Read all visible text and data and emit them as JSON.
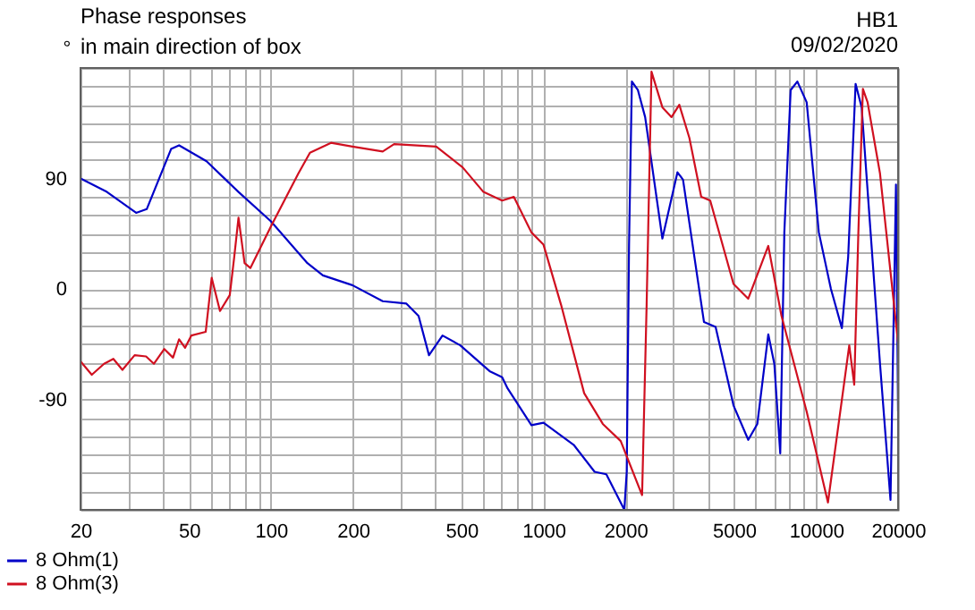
{
  "chart_data": {
    "type": "line",
    "title": "Phase responses",
    "subtitle": "in main direction of box",
    "ylabel": "°",
    "annotations": [
      "HB1",
      "09/02/2020"
    ],
    "log": "x",
    "grid": true,
    "legend": "bottom left",
    "line_style": "solid",
    "marker": "none",
    "xlim": [
      20,
      20000
    ],
    "xticks": [
      20,
      {
        "value": 30,
        "label": null
      },
      {
        "value": 40,
        "label": null
      },
      50,
      {
        "value": 60,
        "label": null
      },
      {
        "value": 70,
        "label": null
      },
      {
        "value": 80,
        "label": null
      },
      {
        "value": 90,
        "label": null
      },
      100,
      200,
      {
        "value": 300,
        "label": null
      },
      {
        "value": 400,
        "label": null
      },
      500,
      {
        "value": 600,
        "label": null
      },
      {
        "value": 700,
        "label": null
      },
      {
        "value": 800,
        "label": null
      },
      {
        "value": 900,
        "label": null
      },
      1000,
      2000,
      {
        "value": 3000,
        "label": null
      },
      {
        "value": 4000,
        "label": null
      },
      5000,
      {
        "value": 6000,
        "label": null
      },
      {
        "value": 7000,
        "label": null
      },
      {
        "value": 8000,
        "label": null
      },
      {
        "value": 9000,
        "label": null
      },
      10000,
      20000
    ],
    "ylim": [
      -180,
      180
    ],
    "yticks": [
      {
        "value": -180,
        "label": null
      },
      {
        "value": -165,
        "label": null
      },
      {
        "value": -150,
        "label": null
      },
      {
        "value": -135,
        "label": null
      },
      {
        "value": -120,
        "label": null
      },
      {
        "value": -105,
        "label": null
      },
      -90,
      {
        "value": -75,
        "label": null
      },
      {
        "value": -60,
        "label": null
      },
      {
        "value": -45,
        "label": null
      },
      {
        "value": -30,
        "label": null
      },
      {
        "value": -15,
        "label": null
      },
      0,
      {
        "value": 15,
        "label": null
      },
      {
        "value": 30,
        "label": null
      },
      {
        "value": 45,
        "label": null
      },
      {
        "value": 60,
        "label": null
      },
      {
        "value": 75,
        "label": null
      },
      90,
      {
        "value": 105,
        "label": null
      },
      {
        "value": 120,
        "label": null
      },
      {
        "value": 135,
        "label": null
      },
      {
        "value": 150,
        "label": null
      },
      {
        "value": 165,
        "label": null
      },
      {
        "value": 180,
        "label": null
      }
    ],
    "series": [
      {
        "name": "8 Ohm(1)",
        "color": "#0000c8",
        "x": [
          20,
          25,
          32,
          35,
          43,
          46,
          58,
          76,
          100,
          136,
          155,
          199,
          257,
          314,
          348,
          380,
          426,
          495,
          634,
          705,
          738,
          903,
          1000,
          1290,
          1540,
          1700,
          1980,
          2020,
          2060,
          2110,
          2220,
          2360,
          2730,
          3100,
          3250,
          3880,
          4280,
          4980,
          5640,
          6090,
          6680,
          7030,
          7390,
          7650,
          8070,
          8540,
          9240,
          10240,
          11340,
          12440,
          13120,
          13970,
          14700,
          17170,
          18760,
          19650,
          20000
        ],
        "values": [
          90,
          79,
          62,
          65,
          114,
          117,
          104,
          79,
          55,
          21,
          11,
          3,
          -10,
          -12,
          -22,
          -54,
          -38,
          -46,
          -67,
          -72,
          -81,
          -111,
          -109,
          -127,
          -149,
          -151,
          -180,
          -149,
          36,
          169,
          162,
          140,
          41,
          95,
          89,
          -27,
          -31,
          -95,
          -123,
          -110,
          -37,
          -61,
          -134,
          46,
          162,
          169,
          152,
          46,
          0,
          -32,
          26,
          167,
          148,
          -61,
          -172,
          85,
          -100
        ]
      },
      {
        "name": "8 Ohm(3)",
        "color": "#d01020",
        "x": [
          20,
          22,
          24.4,
          26.4,
          28.5,
          31.6,
          34.8,
          37.2,
          40.6,
          43.7,
          46,
          48.4,
          51,
          57.6,
          60.6,
          65,
          70.6,
          73.3,
          76,
          80,
          84,
          100,
          126,
          139,
          166,
          199,
          257,
          283,
          404,
          505,
          602,
          705,
          778,
          903,
          1000,
          1160,
          1410,
          1650,
          1920,
          2300,
          2390,
          2490,
          2730,
          2950,
          3150,
          3430,
          3790,
          4090,
          4980,
          5640,
          6680,
          7470,
          9240,
          11060,
          13240,
          13810,
          14300,
          14860,
          15460,
          17170,
          20000
        ],
        "values": [
          -59,
          -70,
          -61,
          -57,
          -66,
          -54,
          -55,
          -61,
          -49,
          -56,
          -41,
          -48,
          -38,
          -35,
          9,
          -18,
          -5,
          26,
          58,
          21,
          17,
          51,
          94,
          111,
          119,
          116,
          112,
          118,
          116,
          99,
          79,
          72,
          75,
          46,
          36,
          -13,
          -85,
          -110,
          -124,
          -168,
          -13,
          177,
          148,
          140,
          150,
          123,
          75,
          72,
          4,
          -8,
          35,
          -22,
          -100,
          -174,
          -46,
          -78,
          46,
          163,
          152,
          94,
          -44
        ]
      }
    ]
  }
}
